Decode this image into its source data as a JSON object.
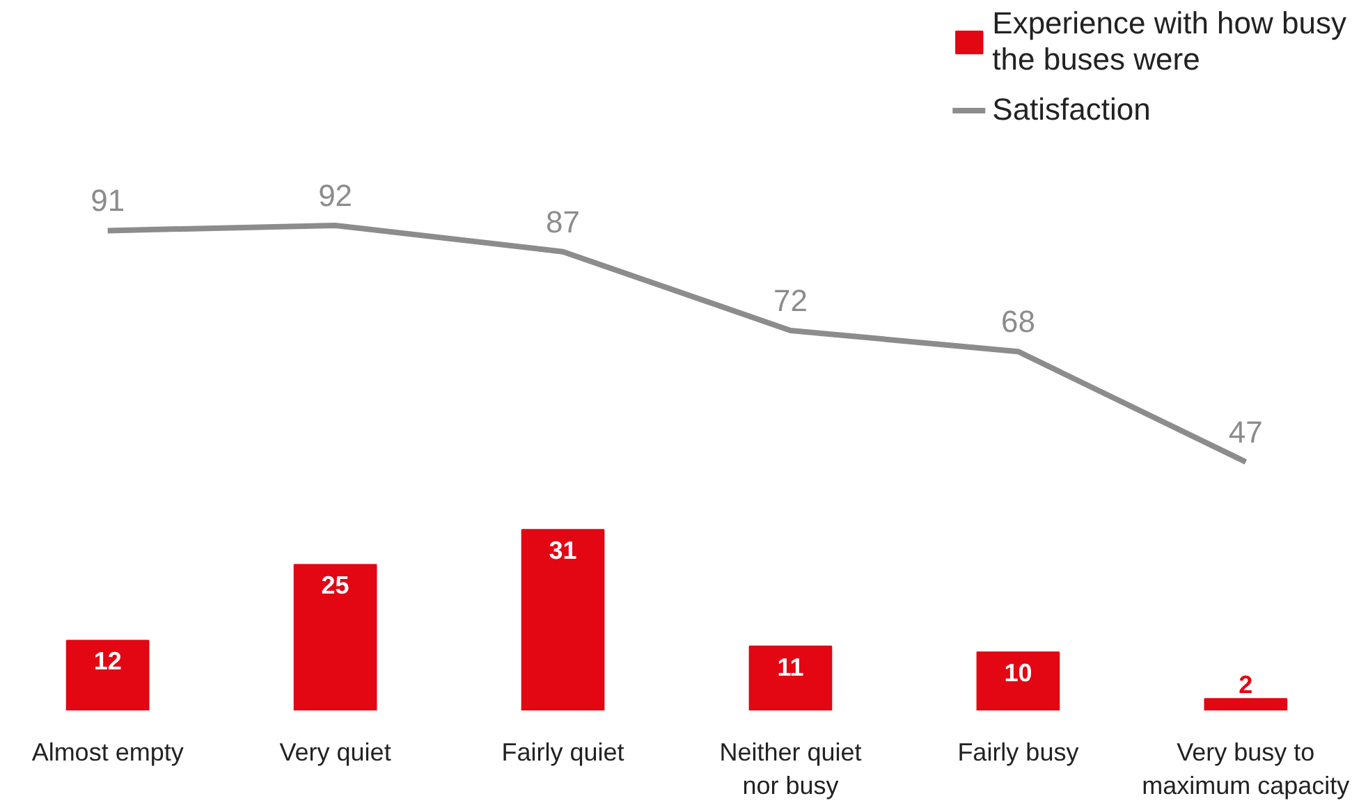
{
  "chart_data": [
    {
      "type": "line",
      "categories": [
        null,
        null,
        null,
        null,
        null,
        null
      ],
      "series": [
        {
          "name": "Satisfaction",
          "color": "#8c8c8c",
          "values": [
            91,
            92,
            87,
            72,
            68,
            47
          ]
        }
      ],
      "data_labels": true,
      "legend": "top right",
      "tick_labels": false,
      "grid": false
    },
    {
      "type": "bar",
      "categories": [
        "Almost empty",
        "Very quiet",
        "Fairly quiet",
        "Neither quiet\nnor busy",
        "Fairly busy",
        "Very busy to\nmaximum capacity"
      ],
      "series": [
        {
          "name": "Experience with how busy\nthe buses were",
          "color": "#e30613",
          "values": [
            12,
            25,
            31,
            11,
            10,
            2
          ]
        }
      ],
      "data_labels": true,
      "legend": "top right",
      "tick_labels": "x",
      "grid": false
    }
  ]
}
